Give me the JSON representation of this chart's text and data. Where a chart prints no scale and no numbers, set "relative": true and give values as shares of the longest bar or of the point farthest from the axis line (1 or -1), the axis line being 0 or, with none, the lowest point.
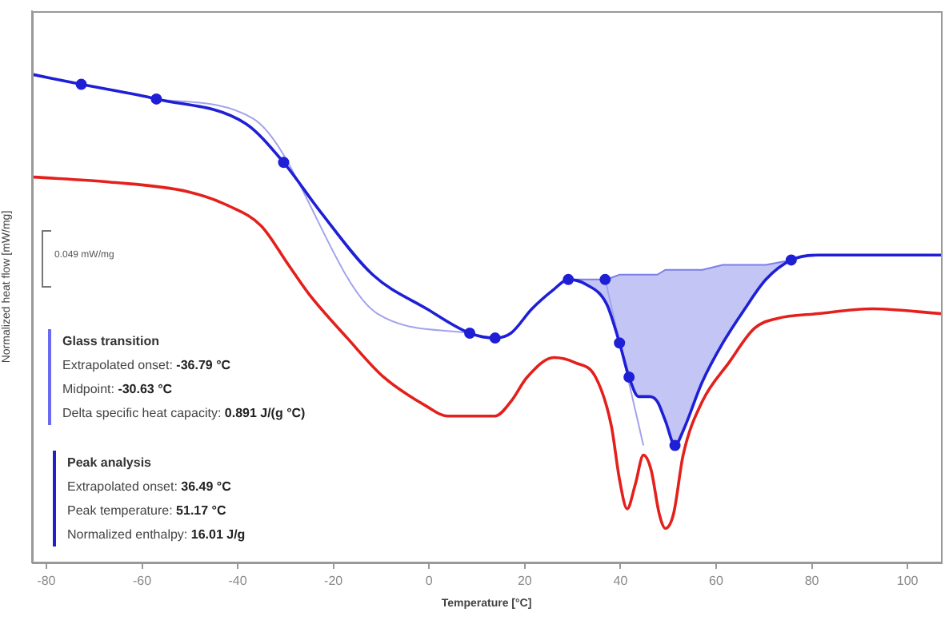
{
  "chart_data": {
    "type": "line",
    "relative": true,
    "xlabel": "Temperature [°C]",
    "ylabel": "Normalized heat flow [mW/mg]",
    "xlim": [
      -83,
      107
    ],
    "xticks": [
      -80,
      -60,
      -40,
      -20,
      0,
      20,
      40,
      60,
      80,
      100
    ],
    "grid": false,
    "legend": false,
    "line_style": "solid",
    "series": [
      {
        "color": "#1f1fd6",
        "x": [
          -82.7,
          -72.7,
          -57.0,
          -38.4,
          -30.4,
          -22.8,
          -11.8,
          -0.5,
          8.5,
          13.8,
          17.1,
          21.5,
          26.1,
          29.1,
          32.8,
          37.1,
          39.8,
          41.8,
          43.8,
          46.1,
          47.7,
          49.4,
          51.4,
          53.1,
          57.1,
          61.4,
          66.0,
          70.4,
          75.7,
          81.3,
          92.7,
          107
        ],
        "values": [
          1.0,
          0.98,
          0.95,
          0.9,
          0.82,
          0.72,
          0.59,
          0.52,
          0.47,
          0.46,
          0.47,
          0.52,
          0.56,
          0.58,
          0.57,
          0.53,
          0.45,
          0.38,
          0.34,
          0.34,
          0.33,
          0.29,
          0.24,
          0.27,
          0.37,
          0.45,
          0.52,
          0.58,
          0.62,
          0.63,
          0.63,
          0.63
        ]
      },
      {
        "color": "#e3201c",
        "x": [
          -82.7,
          -67.0,
          -50.4,
          -41.7,
          -35.1,
          -29.4,
          -25.1,
          -17.1,
          -9.5,
          -0.5,
          3.8,
          13.8,
          17.1,
          20.5,
          26.1,
          30.4,
          34.8,
          38.1,
          39.8,
          41.4,
          43.1,
          44.8,
          46.4,
          48.1,
          49.4,
          51.1,
          53.1,
          57.1,
          62.7,
          68.0,
          72.7,
          81.3,
          92.7,
          107
        ],
        "values": [
          0.79,
          0.78,
          0.76,
          0.73,
          0.69,
          0.61,
          0.55,
          0.46,
          0.38,
          0.32,
          0.3,
          0.3,
          0.33,
          0.38,
          0.42,
          0.41,
          0.38,
          0.28,
          0.17,
          0.11,
          0.16,
          0.22,
          0.19,
          0.1,
          0.07,
          0.1,
          0.22,
          0.33,
          0.41,
          0.48,
          0.5,
          0.51,
          0.52,
          0.51
        ]
      },
      {
        "type": "line",
        "color": "#a3a3ee",
        "x": [
          -57.0,
          -36.8,
          -10.8,
          8.5
        ],
        "values": [
          0.95,
          0.91,
          0.51,
          0.47
        ]
      },
      {
        "type": "line",
        "color": "#a3a3ee",
        "x": [
          36.8,
          44.8
        ],
        "values": [
          0.58,
          0.24
        ]
      },
      {
        "type": "area",
        "color": "#7b7fe8",
        "x": [
          29.1,
          32.8,
          37.1,
          39.8,
          41.8,
          43.8,
          46.1,
          47.7,
          49.4,
          51.4,
          53.1,
          57.1,
          61.4,
          66.0,
          70.4,
          75.7
        ],
        "values": [
          0.58,
          0.58,
          0.58,
          0.59,
          0.59,
          0.59,
          0.59,
          0.59,
          0.6,
          0.6,
          0.6,
          0.6,
          0.61,
          0.61,
          0.61,
          0.62
        ]
      },
      {
        "type": "scatter",
        "color": "#1f1fd6",
        "marker": "circle",
        "x": [
          -72.7,
          -57.0,
          -30.4,
          8.5,
          13.8,
          29.1,
          36.8,
          39.8,
          41.8,
          51.4,
          75.7
        ],
        "values": [
          0.98,
          0.95,
          0.82,
          0.47,
          0.46,
          0.58,
          0.58,
          0.45,
          0.38,
          0.24,
          0.62
        ]
      }
    ],
    "annotations": [
      "0.049 mW/mg",
      "Glass transition",
      "Extrapolated onset: -36.79 °C",
      "Midpoint: -30.63 °C",
      "Delta specific heat capacity: 0.891 J/(g °C)",
      "Peak analysis",
      "Extrapolated onset: 36.49 °C",
      "Peak temperature: 51.17 °C",
      "Normalized enthalpy: 16.01 J/g"
    ]
  }
}
